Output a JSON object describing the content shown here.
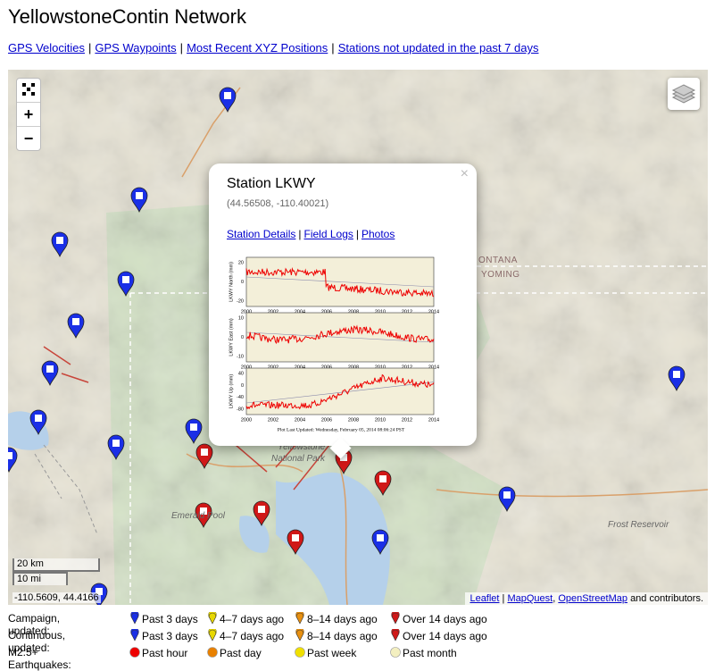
{
  "header": {
    "title": "YellowstoneContin Network"
  },
  "nav": {
    "links": [
      "GPS Velocities",
      "GPS Waypoints",
      "Most Recent XYZ Positions",
      "Stations not updated in the past 7 days"
    ],
    "separator": "|"
  },
  "map": {
    "zoom_in": "+",
    "zoom_out": "−",
    "state_labels": [
      "ONTANA",
      "YOMING"
    ],
    "place_labels": [
      "Yellowstone",
      "National Park",
      "Emerald Pool",
      "Frost Reservoir"
    ],
    "scale": [
      "20 km",
      "10 mi"
    ],
    "coordinates": "-110.5609, 44.4166",
    "attribution": [
      {
        "text": "Leaflet",
        "link": true
      },
      {
        "text": "|",
        "link": false
      },
      {
        "text": "MapQuest",
        "link": true
      },
      {
        "text": ",",
        "link": false
      },
      {
        "text": "OpenStreetMap",
        "link": true
      },
      {
        "text": "and contributors.",
        "link": false
      }
    ],
    "popup": {
      "close": "×",
      "title": "Station LKWY",
      "coordinates": "(44.56508, -110.40021)",
      "links": [
        "Station Details",
        "Field Logs",
        "Photos"
      ],
      "separator": "|",
      "plot": {
        "panels": [
          {
            "label": "LKWY North (mm)",
            "yticks": [
              20,
              0,
              -20
            ]
          },
          {
            "label": "LKWY East (mm)",
            "yticks": [
              10,
              0,
              -10
            ]
          },
          {
            "label": "LKWY Up (mm)",
            "yticks": [
              40,
              0,
              -40,
              -80
            ]
          }
        ],
        "xticks": [
          2000,
          2002,
          2004,
          2006,
          2008,
          2010,
          2012,
          2014
        ],
        "footer": "Plot Last Updated: Wednesday, February 05, 2014 08:06:24 PST"
      }
    }
  },
  "legend": {
    "rows": [
      {
        "label": "Campaign, updated:",
        "items": [
          "Past 3 days",
          "4–7 days ago",
          "8–14 days ago",
          "Over 14 days ago"
        ]
      },
      {
        "label": "Continuous, updated:",
        "items": [
          "Past 3 days",
          "4–7 days ago",
          "8–14 days ago",
          "Over 14 days ago"
        ]
      },
      {
        "label": "M2.5+ Earthquakes:",
        "items": [
          "Past hour",
          "Past day",
          "Past week",
          "Past month"
        ]
      }
    ]
  }
}
